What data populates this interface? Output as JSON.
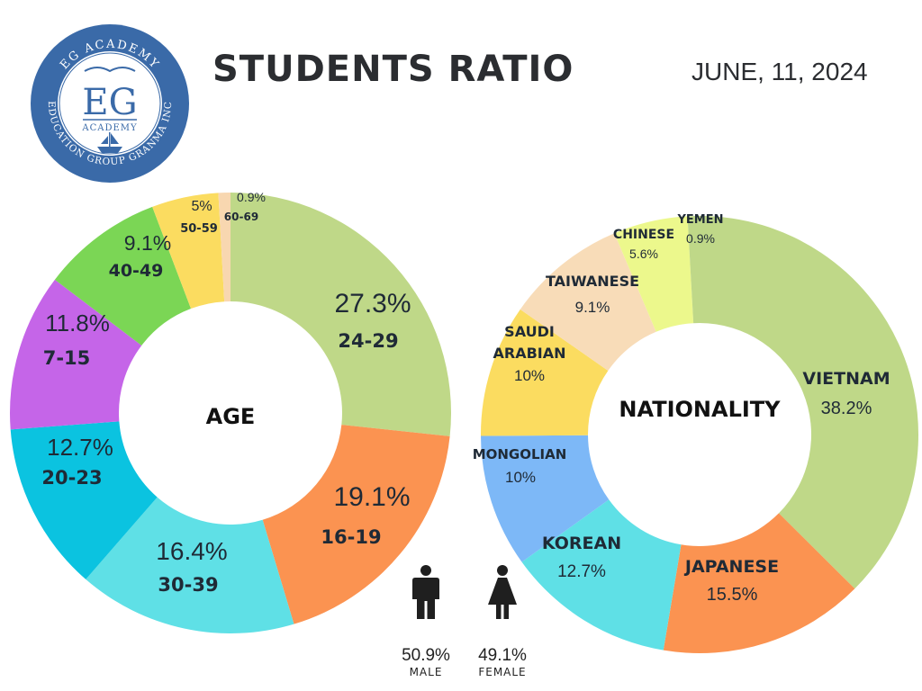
{
  "header": {
    "title": "STUDENTS RATIO",
    "date": "JUNE, 11, 2024"
  },
  "logo": {
    "monogram": "EG",
    "name": "ACADEMY",
    "ring_top": "EG ACADEMY",
    "ring_bottom": "EDUCATION GROUP GRANMA INC",
    "colors": {
      "primary": "#3a6aa8",
      "light": "#e9eef7"
    }
  },
  "gender": {
    "male": {
      "pct": "50.9%",
      "label": "MALE",
      "value": 50.9,
      "icon": "male-person-icon"
    },
    "female": {
      "pct": "49.1%",
      "label": "FEMALE",
      "value": 49.1,
      "icon": "female-person-icon"
    }
  },
  "chart_data": [
    {
      "type": "pie",
      "title": "AGE",
      "slices": [
        {
          "label": "24-29",
          "value": 27.3,
          "pct": "27.3%",
          "color": "#bfd888"
        },
        {
          "label": "16-19",
          "value": 19.1,
          "pct": "19.1%",
          "color": "#fb9351"
        },
        {
          "label": "30-39",
          "value": 16.4,
          "pct": "16.4%",
          "color": "#5fe0e6"
        },
        {
          "label": "20-23",
          "value": 12.7,
          "pct": "12.7%",
          "color": "#0bc3e0"
        },
        {
          "label": "7-15",
          "value": 11.8,
          "pct": "11.8%",
          "color": "#c565e8"
        },
        {
          "label": "40-49",
          "value": 9.1,
          "pct": "9.1%",
          "color": "#7bd655"
        },
        {
          "label": "50-59",
          "value": 5,
          "pct": "5%",
          "color": "#fbdc60"
        },
        {
          "label": "60-69",
          "value": 0.9,
          "pct": "0.9%",
          "color": "#f8d7b0"
        }
      ]
    },
    {
      "type": "pie",
      "title": "NATIONALITY",
      "slices": [
        {
          "label": "VIETNAM",
          "value": 38.2,
          "pct": "38.2%",
          "color": "#bfd888"
        },
        {
          "label": "JAPANESE",
          "value": 15.5,
          "pct": "15.5%",
          "color": "#fb9351"
        },
        {
          "label": "KOREAN",
          "value": 12.7,
          "pct": "12.7%",
          "color": "#5fe0e6"
        },
        {
          "label": "MONGOLIAN",
          "value": 10,
          "pct": "10%",
          "color": "#7db8f7"
        },
        {
          "label": "SAUDI ARABIAN",
          "value": 10,
          "pct": "10%",
          "color": "#fbdc60"
        },
        {
          "label": "TAIWANESE",
          "value": 9.1,
          "pct": "9.1%",
          "color": "#f8dcb8"
        },
        {
          "label": "CHINESE",
          "value": 5.6,
          "pct": "5.6%",
          "color": "#ecf88c"
        },
        {
          "label": "YEMEN",
          "value": 0.9,
          "pct": "0.9%",
          "color": "#bfd888"
        }
      ]
    }
  ]
}
